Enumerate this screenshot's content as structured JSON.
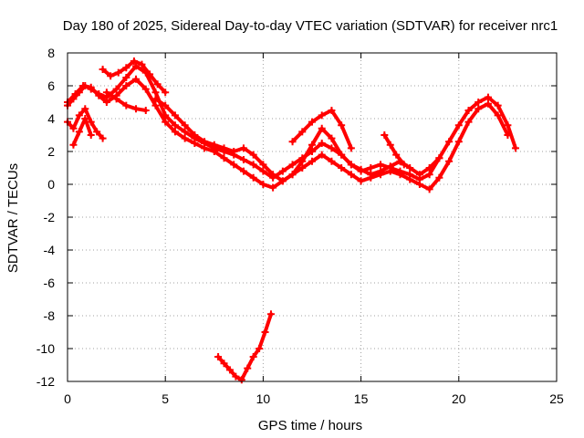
{
  "chart_data": {
    "type": "scatter",
    "title": "Day 180 of 2025, Sidereal Day-to-day VTEC variation (SDTVAR) for receiver nrc1",
    "xlabel": "GPS time / hours",
    "ylabel": "SDTVAR / TECUs",
    "xlim": [
      0,
      25
    ],
    "ylim": [
      -12,
      8
    ],
    "xticks": [
      0,
      5,
      10,
      15,
      20,
      25
    ],
    "yticks": [
      -12,
      -10,
      -8,
      -6,
      -4,
      -2,
      0,
      2,
      4,
      6,
      8
    ],
    "grid": true,
    "marker": "+",
    "color": "#ff0000",
    "series": [
      {
        "name": "track-1",
        "x": [
          0.0,
          0.3,
          0.6,
          0.9,
          1.2,
          1.6,
          2.0,
          2.5,
          3.0,
          3.5,
          4.0,
          4.5,
          5.0,
          5.5,
          6.0,
          6.5,
          7.0,
          7.5,
          8.0,
          8.5,
          9.0,
          9.5,
          10.0,
          10.5,
          11.0,
          11.5,
          12.0,
          12.5,
          13.0,
          13.5,
          14.0,
          14.5,
          15.0,
          15.5,
          16.0,
          16.5,
          17.0,
          17.5,
          18.0,
          18.5,
          19.0,
          19.5,
          20.0,
          20.5,
          21.0,
          21.5,
          22.0,
          22.5,
          22.9
        ],
        "y": [
          4.8,
          5.2,
          5.6,
          6.0,
          5.8,
          5.5,
          5.3,
          5.8,
          6.5,
          7.2,
          6.8,
          5.6,
          4.2,
          3.6,
          3.2,
          2.8,
          2.5,
          2.2,
          2.0,
          1.8,
          1.5,
          1.2,
          0.8,
          0.4,
          0.8,
          1.2,
          1.6,
          2.0,
          2.5,
          2.2,
          1.8,
          1.2,
          0.8,
          1.0,
          1.2,
          1.0,
          0.8,
          0.6,
          0.3,
          0.6,
          1.6,
          2.6,
          3.6,
          4.5,
          5.0,
          5.3,
          4.8,
          3.6,
          2.2
        ]
      },
      {
        "name": "track-2",
        "x": [
          0.0,
          0.4,
          0.8,
          1.2,
          1.6,
          2.0,
          2.5,
          3.0,
          3.5,
          4.0,
          4.5,
          5.0,
          5.5,
          6.0,
          6.5,
          7.0,
          7.5,
          8.0,
          8.5,
          9.0,
          9.5,
          10.0,
          10.5,
          11.0,
          11.5,
          12.0,
          12.5,
          13.0,
          13.5,
          14.0,
          14.5,
          15.0,
          15.5,
          16.0,
          16.5,
          17.0,
          17.5,
          18.0,
          18.5,
          19.0,
          19.5,
          20.0,
          20.5,
          21.0,
          21.5,
          22.0,
          22.5
        ],
        "y": [
          5.0,
          5.5,
          6.0,
          5.9,
          5.4,
          5.0,
          5.4,
          6.0,
          6.4,
          5.8,
          4.8,
          3.8,
          3.2,
          2.8,
          2.5,
          2.2,
          2.0,
          1.6,
          1.2,
          0.8,
          0.4,
          0.0,
          -0.2,
          0.2,
          0.6,
          1.0,
          1.4,
          1.8,
          1.4,
          1.0,
          0.6,
          0.2,
          0.4,
          0.6,
          0.8,
          0.6,
          0.3,
          0.0,
          -0.3,
          0.4,
          1.4,
          2.6,
          3.8,
          4.6,
          4.9,
          4.2,
          3.0
        ]
      },
      {
        "name": "track-3",
        "x": [
          0.0,
          0.3,
          0.6,
          0.9,
          1.2,
          1.5,
          1.8
        ],
        "y": [
          3.8,
          3.4,
          4.2,
          4.6,
          3.8,
          3.2,
          2.8
        ]
      },
      {
        "name": "track-4",
        "x": [
          0.3,
          0.6,
          0.9,
          1.2
        ],
        "y": [
          2.4,
          3.2,
          4.0,
          3.0
        ]
      },
      {
        "name": "track-5",
        "x": [
          1.8,
          2.2,
          2.6,
          3.0,
          3.4,
          3.8,
          4.2,
          4.6,
          5.0
        ],
        "y": [
          7.0,
          6.6,
          6.8,
          7.1,
          7.5,
          7.3,
          6.7,
          6.1,
          5.6
        ]
      },
      {
        "name": "track-6",
        "x": [
          2.0,
          2.5,
          3.0,
          3.5,
          4.0
        ],
        "y": [
          5.6,
          5.2,
          4.8,
          4.6,
          4.5
        ]
      },
      {
        "name": "track-7",
        "x": [
          4.5,
          5.0,
          5.5,
          6.0,
          6.5,
          7.0,
          7.5,
          8.0,
          8.5,
          9.0,
          9.5,
          10.0,
          10.5,
          11.0,
          11.5,
          12.0,
          12.5,
          13.0,
          13.5,
          14.0,
          14.5,
          15.0,
          15.5,
          16.0,
          16.5,
          17.0,
          17.5,
          18.0,
          18.5,
          19.0
        ],
        "y": [
          5.2,
          4.8,
          4.2,
          3.6,
          3.0,
          2.6,
          2.4,
          2.2,
          2.0,
          2.2,
          1.8,
          1.2,
          0.6,
          0.2,
          0.6,
          1.4,
          2.4,
          3.4,
          2.8,
          1.8,
          1.2,
          0.9,
          0.6,
          0.8,
          1.1,
          1.4,
          1.0,
          0.6,
          1.0,
          1.6
        ]
      },
      {
        "name": "track-8",
        "x": [
          11.5,
          12.0,
          12.5,
          13.0,
          13.5,
          14.0,
          14.5
        ],
        "y": [
          2.6,
          3.2,
          3.8,
          4.2,
          4.5,
          3.6,
          2.2
        ]
      },
      {
        "name": "track-9",
        "x": [
          16.2,
          16.5,
          16.8,
          17.2
        ],
        "y": [
          3.0,
          2.4,
          1.8,
          1.2
        ]
      },
      {
        "name": "track-10",
        "x": [
          7.7,
          8.0,
          8.3,
          8.6,
          8.9,
          9.2,
          9.5,
          9.8,
          10.1,
          10.4
        ],
        "y": [
          -10.5,
          -10.9,
          -11.3,
          -11.7,
          -11.9,
          -11.2,
          -10.5,
          -10.0,
          -9.0,
          -7.9
        ]
      }
    ]
  }
}
